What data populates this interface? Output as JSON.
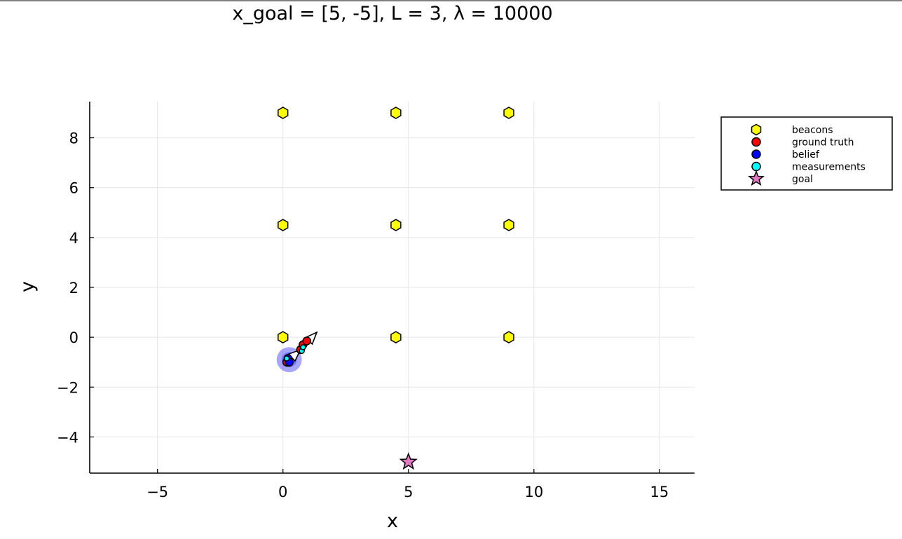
{
  "chart_data": {
    "type": "scatter",
    "title": "x_goal = [5, -5], L = 3, λ = 10000",
    "xlabel": "x",
    "ylabel": "y",
    "xlim": [
      -7.7,
      16.4
    ],
    "ylim": [
      -5.45,
      9.45
    ],
    "xticks": [
      -5,
      0,
      5,
      10,
      15
    ],
    "yticks": [
      -4,
      -2,
      0,
      2,
      4,
      6,
      8
    ],
    "grid": true,
    "legend_position": "top-right-outside",
    "series": [
      {
        "name": "beacons",
        "marker": "hexagon",
        "color": "#ffff00",
        "points": [
          [
            0,
            9
          ],
          [
            4.5,
            9
          ],
          [
            9,
            9
          ],
          [
            0,
            4.5
          ],
          [
            4.5,
            4.5
          ],
          [
            9,
            4.5
          ],
          [
            0,
            0
          ],
          [
            4.5,
            0
          ],
          [
            9,
            0
          ]
        ]
      },
      {
        "name": "ground truth",
        "marker": "circle",
        "color": "#ff0000",
        "points": [
          [
            0.15,
            -1.0
          ],
          [
            0.7,
            -0.5
          ],
          [
            0.8,
            -0.3
          ],
          [
            0.95,
            -0.15
          ]
        ]
      },
      {
        "name": "belief",
        "marker": "circle",
        "color": "#0000ff",
        "points": [
          [
            0.2,
            -0.85
          ],
          [
            0.25,
            -1.0
          ]
        ]
      },
      {
        "name": "measurements",
        "marker": "circle",
        "color": "#00ffff",
        "points": [
          [
            0.15,
            -0.85
          ],
          [
            0.75,
            -0.55
          ],
          [
            0.8,
            -0.4
          ]
        ]
      },
      {
        "name": "goal",
        "marker": "star",
        "color": "#e377c2",
        "points": [
          [
            5,
            -5
          ]
        ]
      }
    ],
    "belief_ellipses": [
      {
        "cx": 0.25,
        "cy": -0.9,
        "r": 0.5,
        "color": "#0000ff"
      }
    ],
    "arrows": [
      {
        "x0": 0.15,
        "y0": -1.0,
        "x1": 0.7,
        "y1": -0.5
      },
      {
        "x0": 0.7,
        "y0": -0.5,
        "x1": 1.35,
        "y1": 0.2
      }
    ]
  }
}
